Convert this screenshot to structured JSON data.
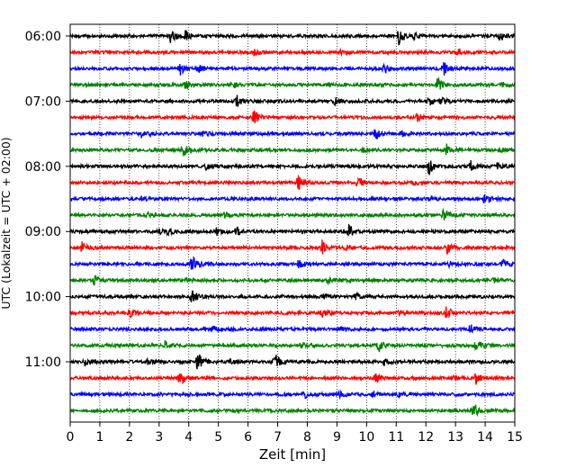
{
  "chart_data": {
    "type": "line",
    "xlabel": "Zeit  [min]",
    "ylabel": "UTC (Lokalzeit = UTC + 02:00)",
    "xlim": [
      0,
      15
    ],
    "x_ticks": [
      0,
      1,
      2,
      3,
      4,
      5,
      6,
      7,
      8,
      9,
      10,
      11,
      12,
      13,
      14,
      15
    ],
    "y_ticks": [
      "06:00",
      "07:00",
      "08:00",
      "09:00",
      "10:00",
      "11:00"
    ],
    "y_tick_rows": [
      0,
      4,
      8,
      12,
      16,
      20
    ],
    "grid": "vertical dotted",
    "row_colors": [
      "#000000",
      "#ff0000",
      "#0000ff",
      "#008000"
    ],
    "rows": [
      {
        "events": [
          [
            3.4,
            4
          ],
          [
            3.9,
            2.5
          ],
          [
            11.1,
            4.5
          ],
          [
            11.6,
            1.5
          ],
          [
            14.5,
            2
          ]
        ]
      },
      {
        "events": [
          [
            6.2,
            1.5
          ],
          [
            9.1,
            1.2
          ],
          [
            13.1,
            1.2
          ]
        ]
      },
      {
        "events": [
          [
            3.7,
            3
          ],
          [
            4.3,
            2
          ],
          [
            10.6,
            2
          ],
          [
            12.6,
            3
          ]
        ]
      },
      {
        "events": [
          [
            3.9,
            2
          ],
          [
            5.5,
            1.2
          ],
          [
            12.4,
            4
          ],
          [
            14.6,
            1
          ]
        ]
      },
      {
        "events": [
          [
            5.6,
            3
          ],
          [
            8.9,
            2
          ],
          [
            12.1,
            2
          ],
          [
            12.5,
            2
          ]
        ]
      },
      {
        "events": [
          [
            6.2,
            3.5
          ],
          [
            11.7,
            2
          ]
        ]
      },
      {
        "events": [
          [
            2.4,
            2
          ],
          [
            4.5,
            1.2
          ],
          [
            10.3,
            3
          ],
          [
            11.2,
            1.2
          ]
        ]
      },
      {
        "events": [
          [
            3.8,
            4
          ],
          [
            9.9,
            1
          ],
          [
            12.7,
            2.5
          ],
          [
            14.5,
            1
          ]
        ]
      },
      {
        "events": [
          [
            4.6,
            1.5
          ],
          [
            12.1,
            4
          ],
          [
            13.5,
            2.5
          ],
          [
            14.4,
            1.2
          ]
        ]
      },
      {
        "events": [
          [
            7.7,
            4
          ],
          [
            9.7,
            3.5
          ],
          [
            11.6,
            1.2
          ]
        ]
      },
      {
        "events": [
          [
            2.4,
            1
          ],
          [
            12.1,
            1
          ],
          [
            14.0,
            4
          ]
        ]
      },
      {
        "events": [
          [
            2.6,
            1
          ],
          [
            5.2,
            1.2
          ],
          [
            12.6,
            3.5
          ]
        ]
      },
      {
        "events": [
          [
            3.0,
            1.5
          ],
          [
            4.9,
            2
          ],
          [
            5.6,
            2
          ],
          [
            9.4,
            3
          ],
          [
            3.3,
            1.2
          ]
        ]
      },
      {
        "events": [
          [
            0.4,
            2.5
          ],
          [
            8.5,
            3.5
          ],
          [
            9.3,
            1.5
          ],
          [
            12.7,
            3
          ]
        ]
      },
      {
        "events": [
          [
            4.1,
            4
          ],
          [
            7.7,
            2
          ],
          [
            12.8,
            1.2
          ],
          [
            14.6,
            2
          ]
        ]
      },
      {
        "events": [
          [
            0.8,
            2
          ],
          [
            3.9,
            1
          ],
          [
            8.7,
            1.2
          ],
          [
            14.3,
            1
          ]
        ]
      },
      {
        "events": [
          [
            4.1,
            3
          ],
          [
            8.5,
            1.2
          ],
          [
            9.6,
            1.2
          ]
        ]
      },
      {
        "events": [
          [
            2.0,
            2.5
          ],
          [
            8.5,
            2.5
          ],
          [
            12.7,
            3
          ],
          [
            11.1,
            1
          ]
        ]
      },
      {
        "events": [
          [
            4.8,
            1.2
          ],
          [
            9.1,
            1
          ],
          [
            13.5,
            2
          ]
        ]
      },
      {
        "events": [
          [
            3.2,
            2
          ],
          [
            7.8,
            1.5
          ],
          [
            10.4,
            3
          ],
          [
            13.7,
            3
          ]
        ]
      },
      {
        "events": [
          [
            0.5,
            1.5
          ],
          [
            4.3,
            5
          ],
          [
            6.9,
            4
          ],
          [
            2.6,
            1.2
          ],
          [
            5.4,
            1.2
          ],
          [
            10.6,
            1.5
          ]
        ]
      },
      {
        "events": [
          [
            3.7,
            4
          ],
          [
            10.3,
            2
          ],
          [
            12.9,
            1.2
          ],
          [
            13.7,
            2.5
          ]
        ]
      },
      {
        "events": [
          [
            7.9,
            2.5
          ],
          [
            9.1,
            1.2
          ],
          [
            10.2,
            1.2
          ],
          [
            11.1,
            1
          ]
        ]
      },
      {
        "events": [
          [
            13.6,
            3.5
          ]
        ]
      }
    ]
  }
}
